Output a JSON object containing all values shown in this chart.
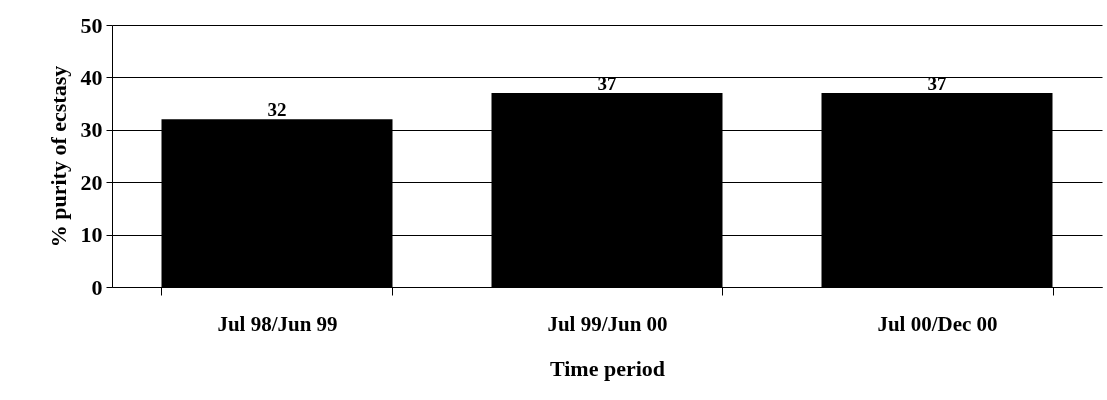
{
  "chart_data": {
    "type": "bar",
    "xlabel": "Time period",
    "ylabel": "% purity of ecstasy",
    "categories": [
      "Jul 98/Jun 99",
      "Jul 99/Jun 00",
      "Jul 00/Dec 00"
    ],
    "values": [
      32,
      37,
      37
    ],
    "color": "#000000",
    "ylim": [
      0,
      50
    ],
    "yticks": [
      0,
      10,
      20,
      30,
      40,
      50
    ],
    "grid": "y",
    "data_labels": true
  }
}
